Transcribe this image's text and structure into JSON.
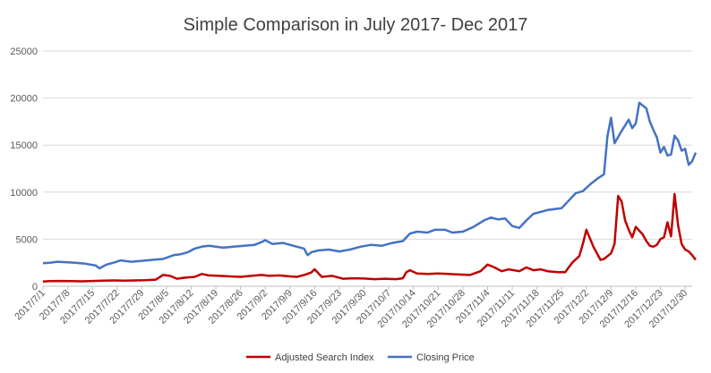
{
  "chart_data": {
    "type": "line",
    "title": "Simple Comparison in July 2017- Dec 2017",
    "xlabel": "",
    "ylabel": "",
    "ylim": [
      0,
      25000
    ],
    "y_ticks": [
      "0",
      "5000",
      "10000",
      "15000",
      "20000",
      "25000"
    ],
    "x_ticks": [
      "2017/7/1",
      "2017/7/8",
      "2017/7/15",
      "2017/7/22",
      "2017/7/29",
      "2017/8/5",
      "2017/8/12",
      "2017/8/19",
      "2017/8/26",
      "2017/9/2",
      "2017/9/9",
      "2017/9/16",
      "2017/9/23",
      "2017/9/30",
      "2017/10/7",
      "2017/10/14",
      "2017/10/21",
      "2017/10/28",
      "2017/11/4",
      "2017/11/11",
      "2017/11/18",
      "2017/11/25",
      "2017/12/2",
      "2017/12/9",
      "2017/12/16",
      "2017/12/23",
      "2017/12/30"
    ],
    "grid": true,
    "legend_position": "bottom",
    "x_start": "2017-07-01",
    "x_end": "2018-01-01",
    "series": [
      {
        "name": "Adjusted Search Index",
        "color": "#C00000",
        "points": [
          [
            "2017-07-01",
            500
          ],
          [
            "2017-07-03",
            550
          ],
          [
            "2017-07-06",
            560
          ],
          [
            "2017-07-09",
            540
          ],
          [
            "2017-07-12",
            520
          ],
          [
            "2017-07-15",
            560
          ],
          [
            "2017-07-18",
            600
          ],
          [
            "2017-07-21",
            620
          ],
          [
            "2017-07-24",
            600
          ],
          [
            "2017-07-27",
            620
          ],
          [
            "2017-07-30",
            650
          ],
          [
            "2017-08-02",
            700
          ],
          [
            "2017-08-04",
            1200
          ],
          [
            "2017-08-06",
            1100
          ],
          [
            "2017-08-08",
            800
          ],
          [
            "2017-08-10",
            900
          ],
          [
            "2017-08-13",
            1000
          ],
          [
            "2017-08-15",
            1300
          ],
          [
            "2017-08-17",
            1150
          ],
          [
            "2017-08-20",
            1100
          ],
          [
            "2017-08-23",
            1050
          ],
          [
            "2017-08-26",
            1000
          ],
          [
            "2017-08-29",
            1100
          ],
          [
            "2017-09-01",
            1200
          ],
          [
            "2017-09-03",
            1100
          ],
          [
            "2017-09-06",
            1150
          ],
          [
            "2017-09-09",
            1050
          ],
          [
            "2017-09-11",
            1000
          ],
          [
            "2017-09-13",
            1200
          ],
          [
            "2017-09-15",
            1450
          ],
          [
            "2017-09-16",
            1800
          ],
          [
            "2017-09-18",
            1000
          ],
          [
            "2017-09-21",
            1100
          ],
          [
            "2017-09-24",
            800
          ],
          [
            "2017-09-27",
            850
          ],
          [
            "2017-09-30",
            820
          ],
          [
            "2017-10-03",
            750
          ],
          [
            "2017-10-06",
            800
          ],
          [
            "2017-10-09",
            750
          ],
          [
            "2017-10-11",
            850
          ],
          [
            "2017-10-12",
            1500
          ],
          [
            "2017-10-13",
            1700
          ],
          [
            "2017-10-15",
            1350
          ],
          [
            "2017-10-18",
            1300
          ],
          [
            "2017-10-21",
            1350
          ],
          [
            "2017-10-24",
            1300
          ],
          [
            "2017-10-27",
            1250
          ],
          [
            "2017-10-30",
            1200
          ],
          [
            "2017-11-02",
            1600
          ],
          [
            "2017-11-04",
            2300
          ],
          [
            "2017-11-06",
            2000
          ],
          [
            "2017-11-08",
            1600
          ],
          [
            "2017-11-10",
            1800
          ],
          [
            "2017-11-13",
            1600
          ],
          [
            "2017-11-15",
            2000
          ],
          [
            "2017-11-17",
            1700
          ],
          [
            "2017-11-19",
            1800
          ],
          [
            "2017-11-21",
            1600
          ],
          [
            "2017-11-24",
            1500
          ],
          [
            "2017-11-26",
            1500
          ],
          [
            "2017-11-28",
            2500
          ],
          [
            "2017-11-30",
            3200
          ],
          [
            "2017-12-01",
            4500
          ],
          [
            "2017-12-02",
            6000
          ],
          [
            "2017-12-04",
            4200
          ],
          [
            "2017-12-06",
            2800
          ],
          [
            "2017-12-07",
            2900
          ],
          [
            "2017-12-09",
            3500
          ],
          [
            "2017-12-10",
            4500
          ],
          [
            "2017-12-11",
            9600
          ],
          [
            "2017-12-12",
            9000
          ],
          [
            "2017-12-13",
            7000
          ],
          [
            "2017-12-14",
            6000
          ],
          [
            "2017-12-15",
            5200
          ],
          [
            "2017-12-16",
            6300
          ],
          [
            "2017-12-18",
            5500
          ],
          [
            "2017-12-19",
            4800
          ],
          [
            "2017-12-20",
            4300
          ],
          [
            "2017-12-21",
            4200
          ],
          [
            "2017-12-22",
            4400
          ],
          [
            "2017-12-23",
            5000
          ],
          [
            "2017-12-24",
            5200
          ],
          [
            "2017-12-25",
            6800
          ],
          [
            "2017-12-26",
            5300
          ],
          [
            "2017-12-27",
            9800
          ],
          [
            "2017-12-28",
            6500
          ],
          [
            "2017-12-29",
            4500
          ],
          [
            "2017-12-30",
            3900
          ],
          [
            "2017-12-31",
            3700
          ],
          [
            "2018-01-01",
            3300
          ],
          [
            "2018-01-02",
            2800
          ]
        ]
      },
      {
        "name": "Closing Price",
        "color": "#4472C4",
        "points": [
          [
            "2017-07-01",
            2450
          ],
          [
            "2017-07-03",
            2500
          ],
          [
            "2017-07-05",
            2600
          ],
          [
            "2017-07-08",
            2550
          ],
          [
            "2017-07-10",
            2500
          ],
          [
            "2017-07-13",
            2400
          ],
          [
            "2017-07-16",
            2200
          ],
          [
            "2017-07-17",
            1900
          ],
          [
            "2017-07-19",
            2300
          ],
          [
            "2017-07-21",
            2500
          ],
          [
            "2017-07-23",
            2750
          ],
          [
            "2017-07-26",
            2600
          ],
          [
            "2017-07-29",
            2700
          ],
          [
            "2017-08-01",
            2800
          ],
          [
            "2017-08-04",
            2900
          ],
          [
            "2017-08-07",
            3300
          ],
          [
            "2017-08-09",
            3400
          ],
          [
            "2017-08-11",
            3600
          ],
          [
            "2017-08-13",
            4000
          ],
          [
            "2017-08-15",
            4200
          ],
          [
            "2017-08-17",
            4300
          ],
          [
            "2017-08-19",
            4200
          ],
          [
            "2017-08-21",
            4100
          ],
          [
            "2017-08-24",
            4200
          ],
          [
            "2017-08-27",
            4300
          ],
          [
            "2017-08-30",
            4400
          ],
          [
            "2017-09-01",
            4700
          ],
          [
            "2017-09-02",
            4900
          ],
          [
            "2017-09-04",
            4500
          ],
          [
            "2017-09-07",
            4600
          ],
          [
            "2017-09-10",
            4300
          ],
          [
            "2017-09-13",
            4000
          ],
          [
            "2017-09-14",
            3300
          ],
          [
            "2017-09-15",
            3600
          ],
          [
            "2017-09-17",
            3800
          ],
          [
            "2017-09-20",
            3900
          ],
          [
            "2017-09-23",
            3700
          ],
          [
            "2017-09-26",
            3900
          ],
          [
            "2017-09-29",
            4200
          ],
          [
            "2017-10-02",
            4400
          ],
          [
            "2017-10-05",
            4300
          ],
          [
            "2017-10-08",
            4600
          ],
          [
            "2017-10-11",
            4800
          ],
          [
            "2017-10-13",
            5600
          ],
          [
            "2017-10-15",
            5800
          ],
          [
            "2017-10-18",
            5700
          ],
          [
            "2017-10-20",
            6000
          ],
          [
            "2017-10-23",
            6000
          ],
          [
            "2017-10-25",
            5700
          ],
          [
            "2017-10-28",
            5800
          ],
          [
            "2017-10-31",
            6300
          ],
          [
            "2017-11-03",
            7000
          ],
          [
            "2017-11-05",
            7300
          ],
          [
            "2017-11-07",
            7100
          ],
          [
            "2017-11-09",
            7200
          ],
          [
            "2017-11-11",
            6400
          ],
          [
            "2017-11-13",
            6200
          ],
          [
            "2017-11-15",
            7000
          ],
          [
            "2017-11-17",
            7700
          ],
          [
            "2017-11-19",
            7900
          ],
          [
            "2017-11-21",
            8100
          ],
          [
            "2017-11-23",
            8200
          ],
          [
            "2017-11-25",
            8300
          ],
          [
            "2017-11-27",
            9100
          ],
          [
            "2017-11-29",
            9900
          ],
          [
            "2017-12-01",
            10100
          ],
          [
            "2017-12-03",
            10800
          ],
          [
            "2017-12-05",
            11400
          ],
          [
            "2017-12-07",
            11900
          ],
          [
            "2017-12-08",
            16000
          ],
          [
            "2017-12-09",
            17900
          ],
          [
            "2017-12-10",
            15200
          ],
          [
            "2017-12-12",
            16500
          ],
          [
            "2017-12-14",
            17700
          ],
          [
            "2017-12-15",
            16800
          ],
          [
            "2017-12-16",
            17300
          ],
          [
            "2017-12-17",
            19500
          ],
          [
            "2017-12-18",
            19200
          ],
          [
            "2017-12-19",
            18900
          ],
          [
            "2017-12-20",
            17500
          ],
          [
            "2017-12-21",
            16600
          ],
          [
            "2017-12-22",
            15800
          ],
          [
            "2017-12-23",
            14200
          ],
          [
            "2017-12-24",
            14800
          ],
          [
            "2017-12-25",
            13900
          ],
          [
            "2017-12-26",
            14000
          ],
          [
            "2017-12-27",
            16000
          ],
          [
            "2017-12-28",
            15500
          ],
          [
            "2017-12-29",
            14400
          ],
          [
            "2017-12-30",
            14600
          ],
          [
            "2017-12-31",
            12900
          ],
          [
            "2018-01-01",
            13300
          ],
          [
            "2018-01-02",
            14200
          ]
        ]
      }
    ]
  }
}
